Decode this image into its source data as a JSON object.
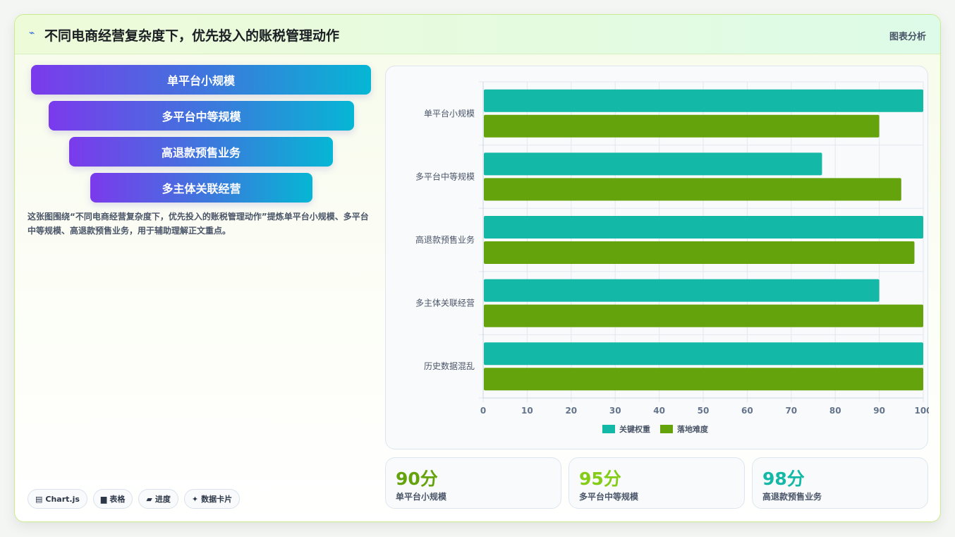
{
  "header": {
    "title": "不同电商经营复杂度下，优先投入的账税管理动作",
    "tag": "图表分析",
    "icon": "wave-icon"
  },
  "funnel": {
    "steps": [
      "单平台小规模",
      "多平台中等规模",
      "高退款预售业务",
      "多主体关联经营"
    ]
  },
  "description": "这张图围绕“不同电商经营复杂度下，优先投入的账税管理动作”提炼单平台小规模、多平台中等规模、高退款预售业务，用于辅助理解正文重点。",
  "pills": [
    {
      "icon": "chart-icon",
      "glyph": "▤",
      "label": "Chart.js"
    },
    {
      "icon": "table-icon",
      "glyph": "▆",
      "label": "表格"
    },
    {
      "icon": "progress-icon",
      "glyph": "▰",
      "label": "进度"
    },
    {
      "icon": "sparkle-icon",
      "glyph": "✦",
      "label": "数据卡片"
    }
  ],
  "stats": [
    {
      "value": "90分",
      "label": "单平台小规模",
      "color": "#65a30d"
    },
    {
      "value": "95分",
      "label": "多平台中等规模",
      "color": "#84cc16"
    },
    {
      "value": "98分",
      "label": "高退款预售业务",
      "color": "#14b8a6"
    }
  ],
  "chart_data": {
    "type": "bar",
    "orientation": "horizontal",
    "categories": [
      "单平台小规模",
      "多平台中等规模",
      "高退款预售业务",
      "多主体关联经营",
      "历史数据混乱"
    ],
    "series": [
      {
        "name": "关键权重",
        "values": [
          100,
          77,
          100,
          90,
          100
        ],
        "color": "#14b8a6"
      },
      {
        "name": "落地难度",
        "values": [
          90,
          95,
          98,
          100,
          100
        ],
        "color": "#65a30d"
      }
    ],
    "xlim": [
      0,
      100
    ],
    "xticks": [
      "0",
      "10",
      "20",
      "30",
      "40",
      "50",
      "60",
      "70",
      "80",
      "90",
      "100"
    ],
    "legend": "bottom",
    "grid": true
  }
}
